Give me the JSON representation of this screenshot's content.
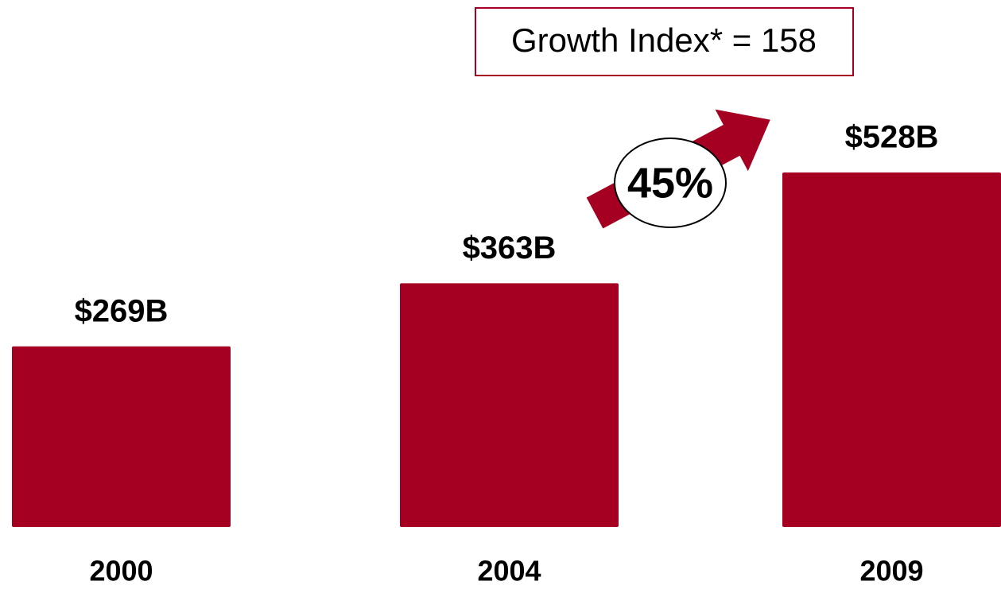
{
  "chart_data": {
    "type": "bar",
    "categories": [
      "2000",
      "2004",
      "2009"
    ],
    "values": [
      269,
      363,
      528
    ],
    "value_labels": [
      "$269B",
      "$363B",
      "$528B"
    ],
    "color": "#a50021",
    "annotations": [
      "Growth Index* = 158",
      "45%"
    ]
  }
}
